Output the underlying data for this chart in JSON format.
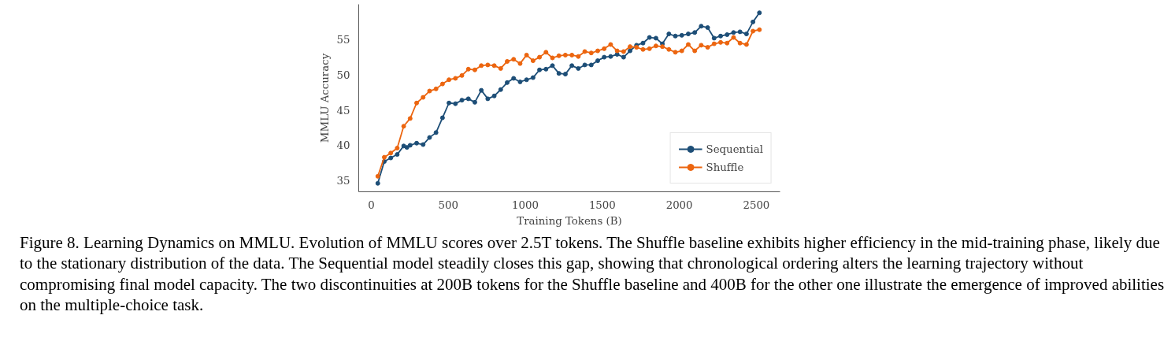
{
  "chart_data": {
    "type": "line",
    "xlabel": "Training Tokens (B)",
    "ylabel": "MMLU Accuracy",
    "xlim": [
      -82,
      2654
    ],
    "ylim": [
      33.4,
      60
    ],
    "xticks": [
      0,
      500,
      1000,
      1500,
      2000,
      2500
    ],
    "yticks": [
      35,
      40,
      45,
      50,
      55
    ],
    "grid": false,
    "legend": "bottom right",
    "marker": "circle",
    "line_style": "solid",
    "series": [
      {
        "name": "Sequential",
        "color": "#1d4e77",
        "x": [
          42,
          84,
          126,
          168,
          210,
          231,
          252,
          294,
          336,
          378,
          420,
          462,
          504,
          546,
          588,
          630,
          672,
          714,
          756,
          798,
          840,
          882,
          924,
          966,
          1008,
          1050,
          1092,
          1134,
          1176,
          1218,
          1260,
          1302,
          1344,
          1386,
          1428,
          1470,
          1512,
          1554,
          1596,
          1638,
          1680,
          1722,
          1764,
          1806,
          1848,
          1890,
          1932,
          1974,
          2016,
          2058,
          2100,
          2142,
          2184,
          2226,
          2268,
          2310,
          2352,
          2394,
          2436,
          2478,
          2520
        ],
        "values": [
          34.6,
          37.7,
          38.2,
          38.7,
          39.9,
          39.7,
          40.0,
          40.3,
          40.1,
          41.1,
          41.8,
          43.9,
          46.0,
          45.9,
          46.4,
          46.6,
          46.1,
          47.8,
          46.6,
          47.0,
          47.9,
          48.9,
          49.5,
          49.0,
          49.3,
          49.6,
          50.7,
          50.8,
          51.3,
          50.2,
          50.1,
          51.3,
          50.9,
          51.4,
          51.4,
          52.0,
          52.5,
          52.6,
          52.9,
          52.5,
          53.4,
          54.2,
          54.5,
          55.3,
          55.2,
          54.4,
          55.8,
          55.5,
          55.6,
          55.8,
          56.0,
          56.9,
          56.7,
          55.2,
          55.5,
          55.7,
          56.0,
          56.1,
          55.8,
          57.5,
          58.8
        ]
      },
      {
        "name": "Shuffle",
        "color": "#ec650f",
        "x": [
          42,
          84,
          126,
          168,
          210,
          252,
          294,
          336,
          378,
          420,
          462,
          504,
          546,
          588,
          630,
          672,
          714,
          756,
          798,
          840,
          882,
          924,
          966,
          1008,
          1050,
          1092,
          1134,
          1176,
          1218,
          1260,
          1302,
          1344,
          1386,
          1428,
          1470,
          1512,
          1554,
          1596,
          1638,
          1680,
          1722,
          1764,
          1806,
          1848,
          1890,
          1932,
          1974,
          2016,
          2058,
          2100,
          2142,
          2184,
          2226,
          2268,
          2310,
          2352,
          2394,
          2436,
          2478,
          2520
        ],
        "values": [
          35.6,
          38.3,
          38.9,
          39.6,
          42.7,
          43.8,
          46.0,
          46.8,
          47.7,
          48.0,
          48.7,
          49.3,
          49.5,
          49.9,
          50.8,
          50.7,
          51.3,
          51.4,
          51.3,
          50.9,
          51.9,
          52.2,
          51.6,
          52.8,
          52.0,
          52.5,
          53.2,
          52.4,
          52.7,
          52.8,
          52.8,
          52.6,
          53.3,
          53.1,
          53.4,
          53.7,
          54.3,
          53.4,
          53.3,
          54.0,
          53.9,
          53.6,
          53.7,
          54.1,
          54.0,
          53.6,
          53.2,
          53.4,
          54.3,
          53.4,
          54.2,
          53.9,
          54.4,
          54.6,
          54.5,
          55.3,
          54.5,
          54.3,
          56.2,
          56.4
        ]
      }
    ],
    "annotations": [
      "Figure 8. Learning Dynamics on MMLU. Evolution of MMLU scores over 2.5T tokens. The Shuffle baseline exhibits higher efficiency in the mid-training phase, likely due to the stationary distribution of the data. The Sequential model steadily closes this gap, showing that chronological ordering alters the learning trajectory without compromising final model capacity. The two discontinuities at 200B tokens for the Shuffle baseline and 400B for the other one illustrate the emergence of improved abilities on the multiple-choice task."
    ]
  }
}
